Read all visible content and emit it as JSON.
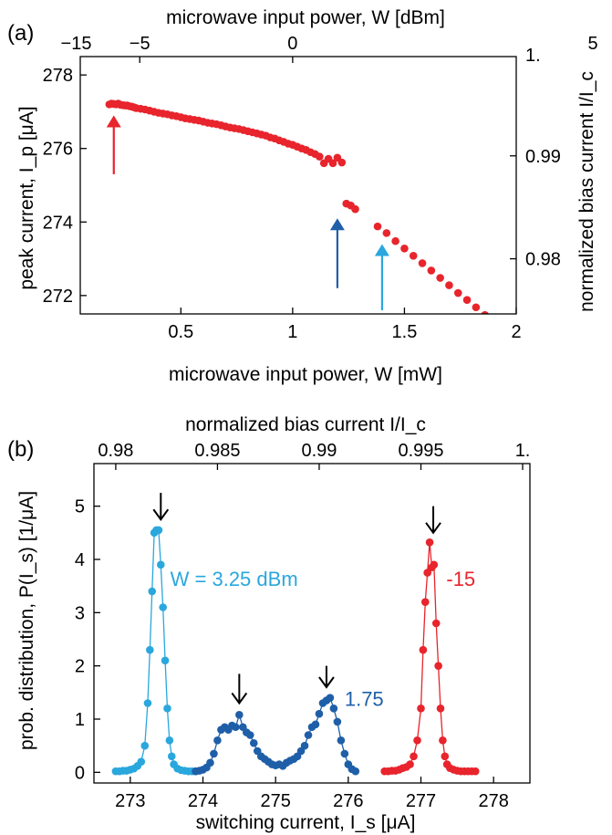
{
  "chart_data": [
    {
      "panel": "(a)",
      "type": "scatter",
      "xlabel": "microwave input power, W [mW]",
      "ylabel": "peak current, I_p [μA]",
      "xlabel_top": "microwave input power, W [dBm]",
      "ylabel_right": "normalized bias current I/I_c",
      "xlim": [
        0.05,
        2.0
      ],
      "ylim": [
        271.5,
        278.5
      ],
      "xticks": [
        0.5,
        1,
        1.5,
        2
      ],
      "xtick_labels": [
        "0.5",
        "1",
        "1.5",
        "2"
      ],
      "yticks": [
        272,
        274,
        276,
        278
      ],
      "ytick_labels": [
        "272",
        "274",
        "276",
        "278"
      ],
      "top_ticks": [
        {
          "label": "−15",
          "mw": 0.0316
        },
        {
          "label": "−5",
          "mw": 0.316
        },
        {
          "label": "0",
          "mw": 1.0
        },
        {
          "label": "5",
          "mw": 3.162
        }
      ],
      "right_ticks": [
        {
          "label": "1.",
          "value": 278.6
        },
        {
          "label": "0.99",
          "value": 275.8
        },
        {
          "label": "0.98",
          "value": 273.0
        }
      ],
      "color": "#e8242c",
      "x": [
        0.18,
        0.19,
        0.2,
        0.21,
        0.22,
        0.23,
        0.24,
        0.25,
        0.26,
        0.27,
        0.28,
        0.29,
        0.3,
        0.32,
        0.34,
        0.36,
        0.38,
        0.4,
        0.42,
        0.44,
        0.46,
        0.48,
        0.5,
        0.52,
        0.54,
        0.56,
        0.58,
        0.6,
        0.62,
        0.64,
        0.66,
        0.68,
        0.7,
        0.72,
        0.74,
        0.76,
        0.78,
        0.8,
        0.82,
        0.84,
        0.86,
        0.88,
        0.9,
        0.92,
        0.94,
        0.96,
        0.98,
        1.0,
        1.02,
        1.04,
        1.06,
        1.08,
        1.1,
        1.12,
        1.14,
        1.16,
        1.18,
        1.2,
        1.22,
        1.24,
        1.26,
        1.28,
        1.38,
        1.42,
        1.46,
        1.5,
        1.54,
        1.58,
        1.62,
        1.66,
        1.7,
        1.74,
        1.78,
        1.82,
        1.86,
        1.89
      ],
      "y": [
        277.2,
        277.22,
        277.21,
        277.2,
        277.22,
        277.19,
        277.18,
        277.17,
        277.17,
        277.15,
        277.14,
        277.12,
        277.1,
        277.08,
        277.06,
        277.03,
        277.0,
        276.97,
        276.95,
        276.93,
        276.9,
        276.88,
        276.85,
        276.82,
        276.8,
        276.78,
        276.76,
        276.73,
        276.7,
        276.68,
        276.66,
        276.63,
        276.6,
        276.57,
        276.55,
        276.53,
        276.5,
        276.47,
        276.44,
        276.41,
        276.38,
        276.35,
        276.3,
        276.27,
        276.22,
        276.18,
        276.13,
        276.1,
        276.05,
        276.0,
        275.96,
        275.9,
        275.85,
        275.78,
        275.6,
        275.72,
        275.6,
        275.75,
        275.62,
        274.5,
        274.45,
        274.35,
        273.88,
        273.7,
        273.48,
        273.28,
        273.08,
        272.88,
        272.68,
        272.48,
        272.28,
        272.07,
        271.88,
        271.68,
        271.47,
        271.38
      ],
      "arrows": [
        {
          "x": 0.2,
          "y_from": 275.3,
          "y_to": 276.9,
          "color": "#e8242c"
        },
        {
          "x": 1.2,
          "y_from": 272.2,
          "y_to": 274.1,
          "color": "#1f5fa8"
        },
        {
          "x": 1.4,
          "y_from": 271.6,
          "y_to": 273.4,
          "color": "#2aa7dd"
        }
      ]
    },
    {
      "panel": "(b)",
      "type": "line",
      "xlabel": "switching current, I_s [μA]",
      "ylabel": "prob. distribution, P(I_s) [1/μA]",
      "xlabel_top": "normalized bias current I/I_c",
      "xlim": [
        272.5,
        278.5
      ],
      "ylim": [
        -0.2,
        5.8
      ],
      "xticks": [
        273,
        274,
        275,
        276,
        277,
        278
      ],
      "xtick_labels": [
        "273",
        "274",
        "275",
        "276",
        "277",
        "278"
      ],
      "yticks": [
        0,
        1,
        2,
        3,
        4,
        5
      ],
      "ytick_labels": [
        "0",
        "1",
        "2",
        "3",
        "4",
        "5"
      ],
      "top_ticks": [
        {
          "label": "0.98",
          "value": 272.8
        },
        {
          "label": "0.985",
          "value": 274.2
        },
        {
          "label": "0.99",
          "value": 275.6
        },
        {
          "label": "0.995",
          "value": 277.0
        },
        {
          "label": "1.",
          "value": 278.4
        }
      ],
      "series": [
        {
          "name": "W = 3.25 dBm",
          "color": "#2aa7dd",
          "label_pos": [
            273.55,
            3.5
          ],
          "x": [
            272.8,
            272.85,
            272.9,
            272.95,
            273.0,
            273.05,
            273.1,
            273.15,
            273.2,
            273.24,
            273.27,
            273.3,
            273.33,
            273.36,
            273.39,
            273.42,
            273.45,
            273.48,
            273.51,
            273.54,
            273.57,
            273.6,
            273.65,
            273.7,
            273.75,
            273.8,
            273.85,
            273.9
          ],
          "y": [
            0.02,
            0.02,
            0.03,
            0.03,
            0.05,
            0.07,
            0.12,
            0.2,
            0.5,
            1.3,
            2.3,
            3.4,
            4.5,
            4.55,
            4.55,
            3.9,
            3.1,
            2.1,
            1.2,
            0.6,
            0.3,
            0.15,
            0.07,
            0.04,
            0.03,
            0.02,
            0.02,
            0.02
          ]
        },
        {
          "name": "1.75",
          "color": "#1f5fa8",
          "label_pos": [
            275.95,
            1.25
          ],
          "x": [
            273.9,
            273.95,
            274.0,
            274.05,
            274.1,
            274.15,
            274.2,
            274.25,
            274.3,
            274.35,
            274.4,
            274.45,
            274.5,
            274.55,
            274.6,
            274.65,
            274.7,
            274.75,
            274.8,
            274.85,
            274.9,
            274.95,
            275.0,
            275.05,
            275.1,
            275.15,
            275.2,
            275.25,
            275.3,
            275.35,
            275.4,
            275.45,
            275.5,
            275.55,
            275.6,
            275.65,
            275.7,
            275.75,
            275.8,
            275.85,
            275.9,
            275.95,
            276.0,
            276.05,
            276.1
          ],
          "y": [
            0.02,
            0.03,
            0.05,
            0.09,
            0.18,
            0.35,
            0.6,
            0.8,
            0.85,
            0.8,
            0.88,
            0.85,
            1.08,
            0.85,
            0.75,
            0.7,
            0.55,
            0.4,
            0.3,
            0.25,
            0.2,
            0.15,
            0.13,
            0.15,
            0.12,
            0.18,
            0.22,
            0.25,
            0.3,
            0.4,
            0.5,
            0.7,
            0.85,
            0.9,
            1.1,
            1.3,
            1.35,
            1.4,
            1.2,
            0.95,
            0.6,
            0.35,
            0.15,
            0.06,
            0.02
          ]
        },
        {
          "name": "-15",
          "color": "#e8242c",
          "label_pos": [
            277.35,
            3.5
          ],
          "x": [
            276.5,
            276.55,
            276.6,
            276.65,
            276.7,
            276.75,
            276.8,
            276.85,
            276.9,
            276.95,
            277.0,
            277.03,
            277.06,
            277.09,
            277.12,
            277.15,
            277.18,
            277.21,
            277.24,
            277.27,
            277.3,
            277.33,
            277.36,
            277.4,
            277.45,
            277.5,
            277.55,
            277.6,
            277.65,
            277.7,
            277.75
          ],
          "y": [
            0.02,
            0.02,
            0.03,
            0.03,
            0.05,
            0.08,
            0.1,
            0.15,
            0.3,
            0.6,
            1.2,
            2.3,
            3.2,
            3.75,
            4.32,
            3.85,
            3.9,
            2.8,
            2.0,
            1.2,
            0.6,
            0.3,
            0.15,
            0.08,
            0.05,
            0.03,
            0.02,
            0.02,
            0.02,
            0.02,
            0.02
          ]
        }
      ],
      "arrows": [
        {
          "x": 273.42,
          "y_top": 5.25,
          "y_tip": 4.75
        },
        {
          "x": 274.5,
          "y_top": 1.85,
          "y_tip": 1.3
        },
        {
          "x": 275.7,
          "y_top": 2.0,
          "y_tip": 1.6
        },
        {
          "x": 277.17,
          "y_top": 5.0,
          "y_tip": 4.5
        }
      ]
    }
  ]
}
